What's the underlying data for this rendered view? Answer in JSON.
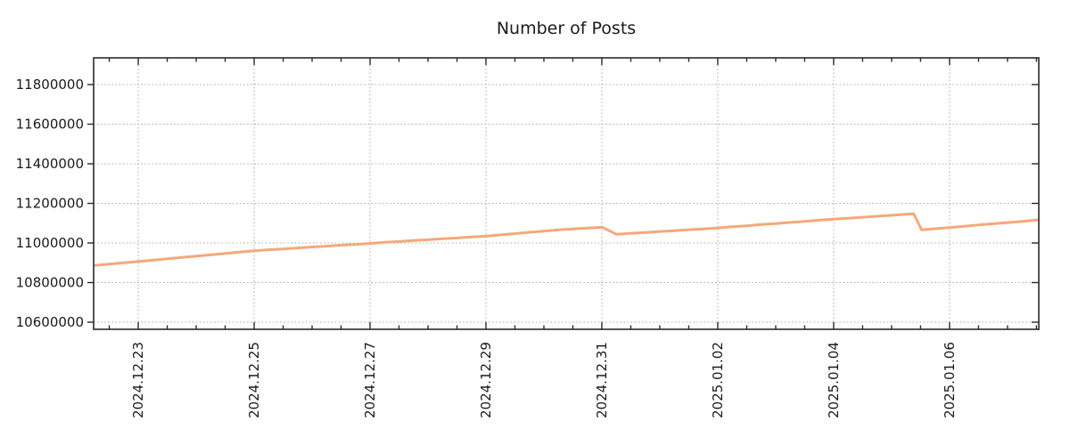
{
  "title": "Number of Posts",
  "colors": {
    "line": "#F5A87B",
    "grid": "#A8A8A8",
    "axis": "#2A2A2A",
    "text": "#1A1A1A",
    "background": "#FFFFFF"
  },
  "chart_data": {
    "type": "line",
    "title": "Number of Posts",
    "xlabel": "",
    "ylabel": "",
    "grid": true,
    "legend_visible": false,
    "x_unit": "days (offset, 1 = 2024.12.23)",
    "xlim": [
      0.23,
      16.54
    ],
    "ylim": [
      10564000,
      11935000
    ],
    "x_tick_positions": [
      1,
      3,
      5,
      7,
      9,
      11,
      13,
      15
    ],
    "x_tick_labels": [
      "2024.12.23",
      "2024.12.25",
      "2024.12.27",
      "2024.12.29",
      "2024.12.31",
      "2025.01.02",
      "2025.01.04",
      "2025.01.06"
    ],
    "x_minor_tick_step": 0.5,
    "y_ticks": [
      10600000,
      10800000,
      11000000,
      11200000,
      11400000,
      11600000,
      11800000
    ],
    "y_tick_labels": [
      "10600000",
      "10800000",
      "11000000",
      "11200000",
      "11400000",
      "11600000",
      "11800000"
    ],
    "series": [
      {
        "name": "Number of Posts",
        "color": "#F5A87B",
        "x": [
          0.23,
          0.5,
          0.75,
          1,
          1.25,
          1.5,
          1.75,
          2,
          2.25,
          2.5,
          2.75,
          3,
          3.25,
          3.5,
          3.75,
          4,
          4.25,
          4.5,
          4.75,
          5,
          5.25,
          5.5,
          5.75,
          6,
          6.25,
          6.5,
          6.75,
          7,
          7.25,
          7.5,
          7.75,
          8,
          8.25,
          8.5,
          8.75,
          8.9,
          9.0,
          9.25,
          9.5,
          9.75,
          10,
          10.25,
          10.5,
          10.75,
          11,
          11.25,
          11.5,
          11.75,
          12,
          12.25,
          12.5,
          12.75,
          13,
          13.25,
          13.5,
          13.75,
          14,
          14.25,
          14.38,
          14.52,
          14.75,
          15,
          15.25,
          15.5,
          15.75,
          16,
          16.25,
          16.54
        ],
        "y": [
          10886000,
          10893000,
          10900000,
          10906000,
          10913000,
          10920000,
          10927000,
          10934000,
          10940000,
          10947000,
          10954000,
          10961000,
          10966000,
          10970000,
          10975000,
          10980000,
          10984000,
          10989000,
          10993000,
          10998000,
          11003000,
          11007000,
          11012000,
          11016000,
          11021000,
          11025000,
          11030000,
          11034000,
          11041000,
          11047000,
          11054000,
          11060000,
          11066000,
          11071000,
          11075000,
          11078000,
          11080000,
          11044000,
          11049000,
          11053000,
          11058000,
          11062000,
          11067000,
          11071000,
          11076000,
          11082000,
          11087000,
          11093000,
          11098000,
          11104000,
          11109000,
          11115000,
          11120000,
          11125000,
          11130000,
          11135000,
          11140000,
          11145000,
          11148000,
          11066000,
          11072000,
          11078000,
          11084000,
          11091000,
          11097000,
          11103000,
          11109000,
          11117000
        ]
      }
    ],
    "annotations": [
      "sharp drop of ~36000 at 2024.12.31",
      "sharp drop of ~82000 at ~2025.01.05"
    ]
  }
}
